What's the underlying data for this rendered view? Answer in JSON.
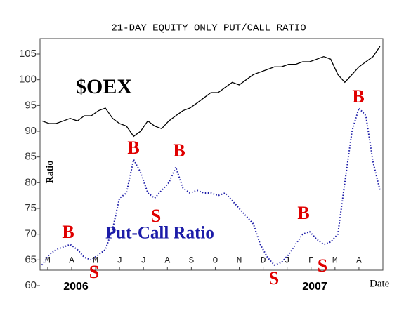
{
  "chart_data": {
    "type": "line",
    "title": "21-DAY EQUITY ONLY PUT/CALL RATIO",
    "y_label": "Ratio",
    "x_label": "Date",
    "year_labels": [
      "2006",
      "2007"
    ],
    "ylim": [
      60,
      108
    ],
    "yticks": [
      60,
      65,
      70,
      75,
      80,
      85,
      90,
      95,
      100,
      105
    ],
    "xlim": [
      -0.32,
      14.0
    ],
    "xticks": [
      {
        "value": 0,
        "label": "M"
      },
      {
        "value": 1,
        "label": "A"
      },
      {
        "value": 2,
        "label": "M"
      },
      {
        "value": 3,
        "label": "J"
      },
      {
        "value": 4,
        "label": "J"
      },
      {
        "value": 5,
        "label": "A"
      },
      {
        "value": 6,
        "label": "S"
      },
      {
        "value": 7,
        "label": "O"
      },
      {
        "value": 8,
        "label": "N"
      },
      {
        "value": 9,
        "label": "D"
      },
      {
        "value": 10,
        "label": "J"
      },
      {
        "value": 11,
        "label": "F"
      },
      {
        "value": 12,
        "label": "M"
      },
      {
        "value": 13,
        "label": "A"
      }
    ],
    "x": [
      -0.24,
      0.06,
      0.35,
      0.65,
      0.94,
      1.24,
      1.53,
      1.82,
      2.12,
      2.41,
      2.71,
      3.0,
      3.29,
      3.59,
      3.88,
      4.18,
      4.47,
      4.76,
      5.06,
      5.35,
      5.65,
      5.94,
      6.24,
      6.53,
      6.82,
      7.12,
      7.41,
      7.71,
      8.0,
      8.29,
      8.59,
      8.88,
      9.18,
      9.47,
      9.76,
      10.06,
      10.35,
      10.65,
      10.94,
      11.24,
      11.53,
      11.82,
      12.12,
      12.41,
      12.71,
      13.0,
      13.29,
      13.59,
      13.88
    ],
    "series": [
      {
        "name": "$OEX",
        "color": "#000000",
        "dashed": false,
        "values": [
          92,
          91.5,
          91.5,
          92,
          92.5,
          92,
          93,
          93,
          94,
          94.5,
          92.5,
          91.5,
          91,
          89,
          90,
          92,
          91,
          90.5,
          92,
          93,
          94,
          94.5,
          95.5,
          96.5,
          97.5,
          97.5,
          98.5,
          99.5,
          99,
          100,
          101,
          101.5,
          102,
          102.5,
          102.5,
          103,
          103,
          103.5,
          103.5,
          104,
          104.5,
          104,
          101,
          99.5,
          101,
          102.5,
          103.5,
          104.5,
          106.5
        ]
      },
      {
        "name": "Put-Call Ratio",
        "color": "#1c1ca8",
        "dashed": true,
        "values": [
          64,
          66,
          67,
          67.5,
          68,
          67,
          65.5,
          65,
          66,
          67,
          71,
          77,
          78,
          84.5,
          82,
          78,
          77,
          78.5,
          80,
          83,
          79,
          78,
          78.5,
          78,
          78,
          77.5,
          78,
          76.5,
          75,
          73.5,
          72,
          68,
          65.5,
          64,
          64.5,
          66,
          68,
          70,
          70.5,
          69,
          68,
          68.5,
          70,
          80,
          90,
          94.5,
          93,
          84,
          78.5
        ]
      }
    ],
    "annotations": [
      "B",
      "S",
      "B",
      "S",
      "B",
      "S",
      "B",
      "S",
      "B"
    ]
  }
}
